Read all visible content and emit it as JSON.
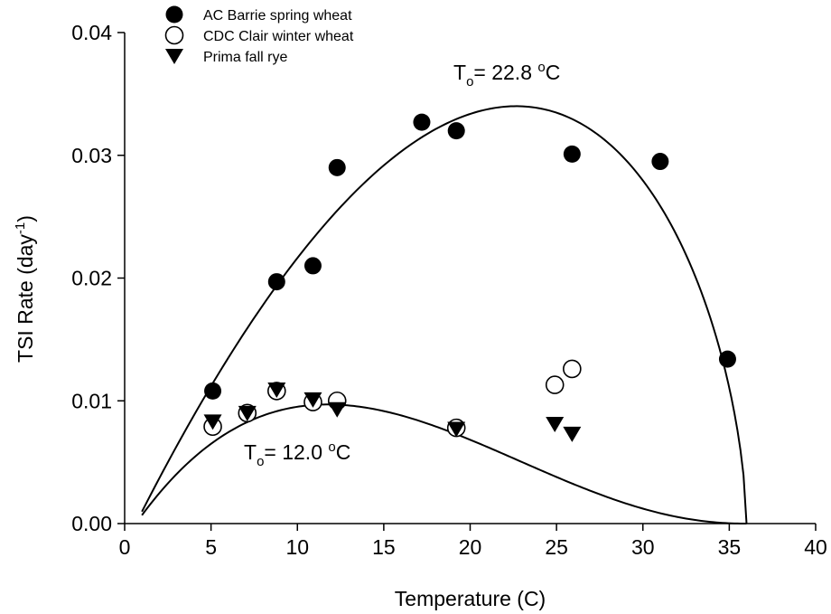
{
  "chart_data": {
    "type": "scatter",
    "xlabel": "Temperature (C)",
    "ylabel": {
      "main": "TSI Rate (day",
      "sup": "-1",
      "close": ")"
    },
    "xlim": [
      0,
      40
    ],
    "ylim": [
      0,
      0.04
    ],
    "x_ticks": [
      0,
      5,
      10,
      15,
      20,
      25,
      30,
      35,
      40
    ],
    "x_tick_labels": [
      "0",
      "5",
      "10",
      "15",
      "20",
      "25",
      "30",
      "35",
      "40"
    ],
    "y_ticks": [
      0,
      0.01,
      0.02,
      0.03,
      0.04
    ],
    "y_tick_labels": [
      "0.00",
      "0.01",
      "0.02",
      "0.03",
      "0.04"
    ],
    "legend_position": "top-left",
    "grid": false,
    "series": [
      {
        "name": "AC Barrie spring wheat",
        "marker": "filled-circle",
        "points": [
          [
            5.1,
            0.0108
          ],
          [
            8.8,
            0.0197
          ],
          [
            10.9,
            0.021
          ],
          [
            12.3,
            0.029
          ],
          [
            17.2,
            0.0327
          ],
          [
            19.2,
            0.032
          ],
          [
            25.9,
            0.0301
          ],
          [
            31.0,
            0.0295
          ],
          [
            34.9,
            0.0134
          ]
        ]
      },
      {
        "name": "CDC Clair winter wheat",
        "marker": "open-circle",
        "points": [
          [
            5.1,
            0.0079
          ],
          [
            7.1,
            0.009
          ],
          [
            8.8,
            0.0108
          ],
          [
            10.9,
            0.0099
          ],
          [
            12.3,
            0.01
          ],
          [
            19.2,
            0.0078
          ],
          [
            24.9,
            0.0113
          ],
          [
            25.9,
            0.0126
          ]
        ]
      },
      {
        "name": "Prima fall rye",
        "marker": "filled-triangle-down",
        "points": [
          [
            5.1,
            0.0083
          ],
          [
            7.1,
            0.009
          ],
          [
            8.8,
            0.0109
          ],
          [
            10.9,
            0.0101
          ],
          [
            12.3,
            0.0093
          ],
          [
            19.2,
            0.0077
          ],
          [
            24.9,
            0.0081
          ],
          [
            25.9,
            0.0073
          ]
        ]
      }
    ],
    "fitted_curves": [
      {
        "fits": "AC Barrie spring wheat",
        "x_min": 1,
        "x_max": 36,
        "x_at_peak": 22.8,
        "y_peak": 0.034
      },
      {
        "fits": "Prima fall rye",
        "x_min": 1,
        "x_max": 36,
        "x_at_peak": 12.0,
        "y_peak": 0.0097
      }
    ],
    "annotations": [
      {
        "id": "upper",
        "prefix": "T",
        "sub": "o",
        "text": "= 22.8 ",
        "sup": "o",
        "suffix": "C"
      },
      {
        "id": "lower",
        "prefix": "T",
        "sub": "o",
        "text": "= 12.0 ",
        "sup": "o",
        "suffix": "C"
      }
    ]
  }
}
